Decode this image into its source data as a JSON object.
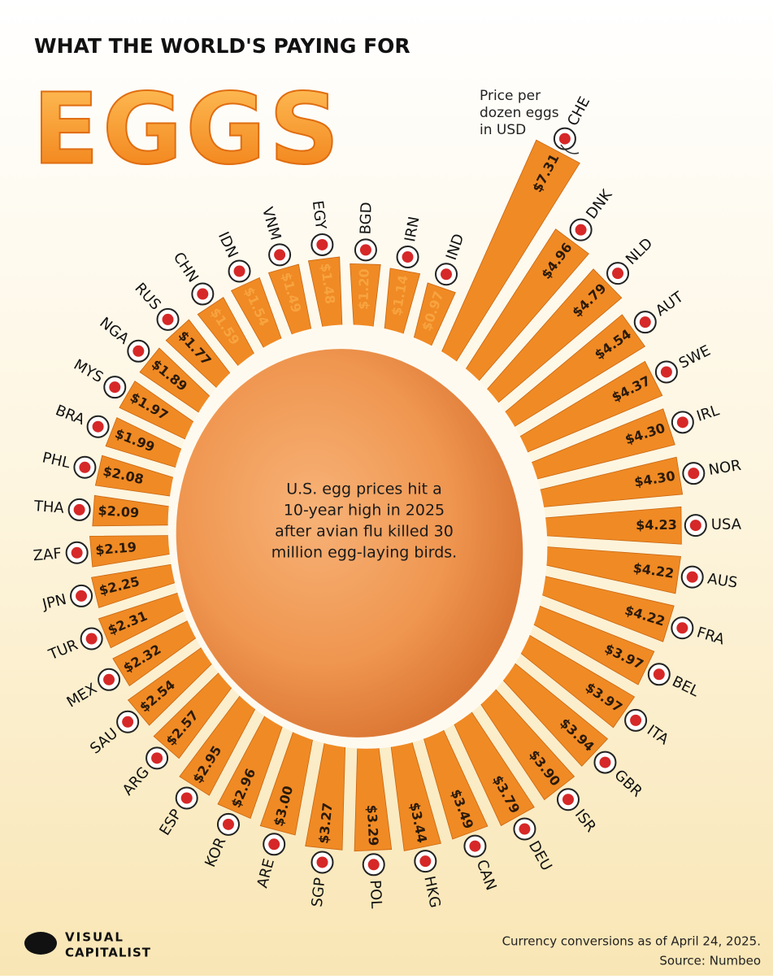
{
  "chart_data": {
    "type": "radial-bar",
    "title": "WHAT THE WORLD'S PAYING FOR",
    "subtitle": "EGGS",
    "axis_note_lines": [
      "Price per",
      "dozen eggs",
      "in USD"
    ],
    "center_note_lines": [
      "U.S. egg prices hit a",
      "10-year high in 2025",
      "after avian flu killed 30",
      "million egg-laying birds."
    ],
    "footnote": "Currency conversions as of April 24, 2025.",
    "source": "Source: Numbeo",
    "color": "#f08a24",
    "categories": [
      "CHE",
      "DNK",
      "NLD",
      "AUT",
      "SWE",
      "IRL",
      "NOR",
      "USA",
      "AUS",
      "FRA",
      "BEL",
      "ITA",
      "GBR",
      "ISR",
      "DEU",
      "CAN",
      "HKG",
      "POL",
      "SGP",
      "ARE",
      "KOR",
      "ESP",
      "ARG",
      "SAU",
      "MEX",
      "TUR",
      "JPN",
      "ZAF",
      "THA",
      "PHL",
      "BRA",
      "MYS",
      "NGA",
      "RUS",
      "CHN",
      "IDN",
      "VNM",
      "EGY",
      "BGD",
      "IRN",
      "IND"
    ],
    "values": [
      7.31,
      4.96,
      4.79,
      4.54,
      4.37,
      4.3,
      4.3,
      4.23,
      4.22,
      4.22,
      3.97,
      3.97,
      3.94,
      3.9,
      3.79,
      3.49,
      3.44,
      3.29,
      3.27,
      3.0,
      2.96,
      2.95,
      2.57,
      2.54,
      2.32,
      2.31,
      2.25,
      2.19,
      2.09,
      2.08,
      1.99,
      1.97,
      1.89,
      1.77,
      1.59,
      1.54,
      1.49,
      1.48,
      1.2,
      1.14,
      0.97
    ],
    "value_labels": [
      "$7.31",
      "$4.96",
      "$4.79",
      "$4.54",
      "$4.37",
      "$4.30",
      "$4.30",
      "$4.23",
      "$4.22",
      "$4.22",
      "$3.97",
      "$3.97",
      "$3.94",
      "$3.90",
      "$3.79",
      "$3.49",
      "$3.44",
      "$3.29",
      "$3.27",
      "$3.00",
      "$2.96",
      "$2.95",
      "$2.57",
      "$2.54",
      "$2.32",
      "$2.31",
      "$2.25",
      "$2.19",
      "$2.09",
      "$2.08",
      "$1.99",
      "$1.97",
      "$1.89",
      "$1.77",
      "$1.59",
      "$1.54",
      "$1.49",
      "$1.48",
      "$1.20",
      "$1.14",
      "$0.97"
    ]
  },
  "brand": {
    "line1": "VISUAL",
    "line2": "CAPITALIST"
  }
}
